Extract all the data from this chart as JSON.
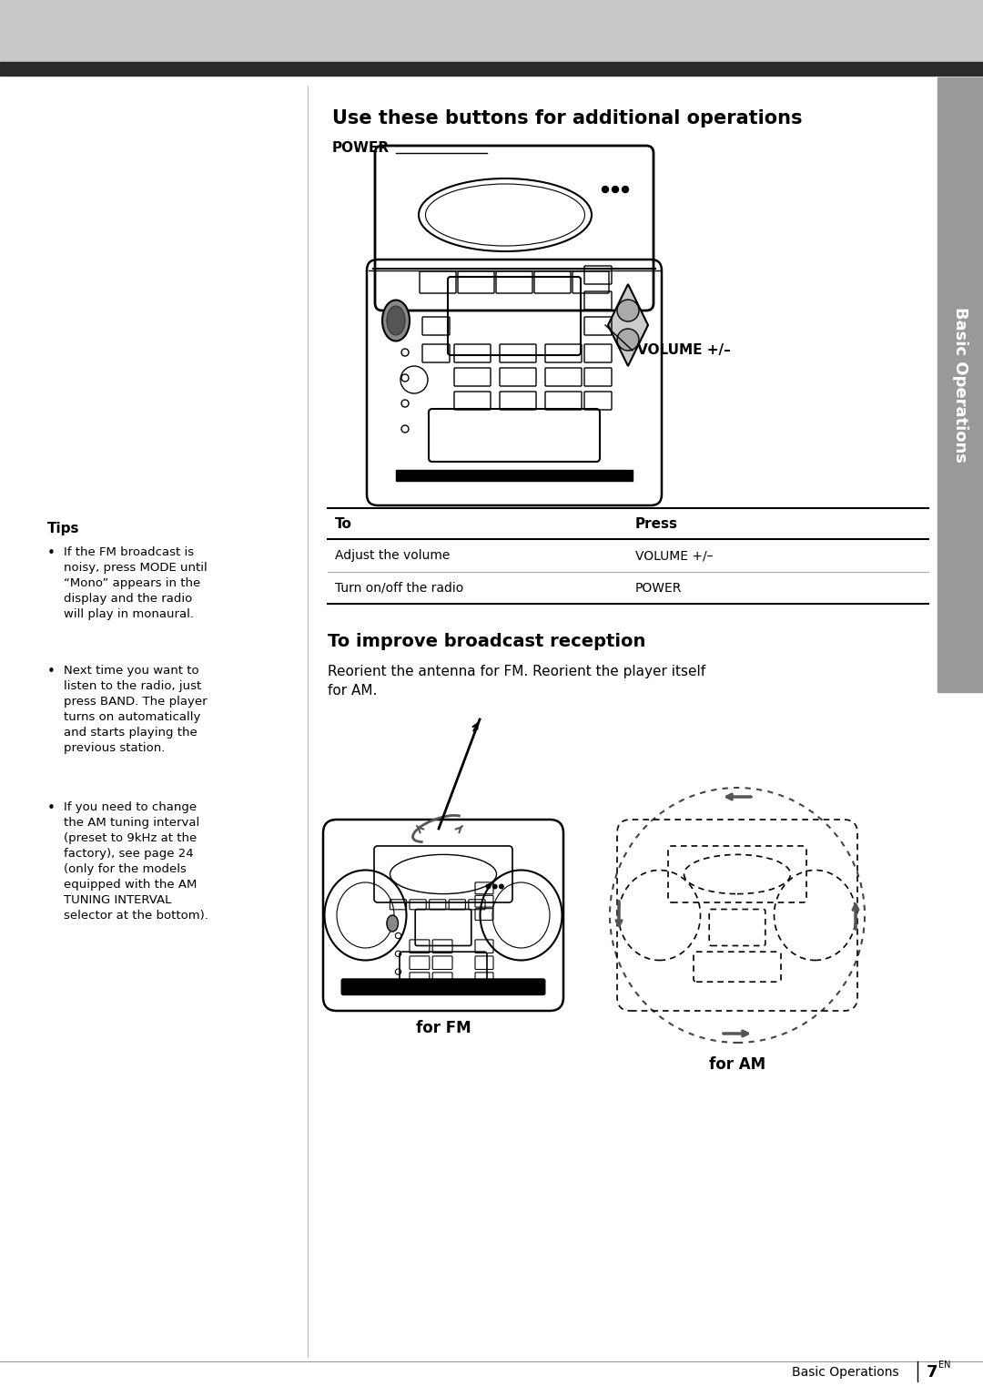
{
  "page_bg": "#ffffff",
  "header_bg": "#c8c8c8",
  "header_bar_bg": "#2a2a2a",
  "sidebar_bg": "#999999",
  "sidebar_text": "Basic Operations",
  "main_title": "Use these buttons for additional operations",
  "power_label": "POWER",
  "volume_label": "VOLUME +/–",
  "table_header_to": "To",
  "table_header_press": "Press",
  "table_row1_to": "Adjust the volume",
  "table_row1_press": "VOLUME +/–",
  "table_row2_to": "Turn on/off the radio",
  "table_row2_press": "POWER",
  "section2_title": "To improve broadcast reception",
  "section2_body": "Reorient the antenna for FM. Reorient the player itself\nfor AM.",
  "fm_label": "for FM",
  "am_label": "for AM",
  "tips_title": "Tips",
  "tip1": "If the FM broadcast is\nnoisy, press MODE until\n“Mono” appears in the\ndisplay and the radio\nwill play in monaural.",
  "tip2": "Next time you want to\nlisten to the radio, just\npress BAND. The player\nturns on automatically\nand starts playing the\nprevious station.",
  "tip3": "If you need to change\nthe AM tuning interval\n(preset to 9kHz at the\nfactory), see page 24\n(only for the models\nequipped with the AM\nTUNING INTERVAL\nselector at the bottom).",
  "footer_text": "Basic Operations",
  "footer_page": "7",
  "footer_page_super": "EN",
  "text_color": "#000000"
}
